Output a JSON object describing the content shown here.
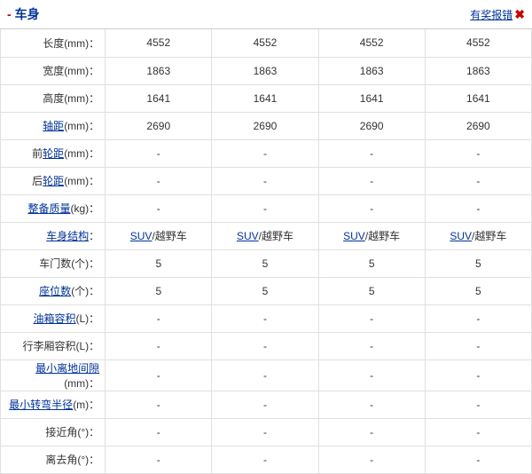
{
  "header": {
    "title": "车身",
    "report_label": "有奖报错"
  },
  "rows": [
    {
      "label": "长度(mm)：",
      "link": false,
      "values": [
        "4552",
        "4552",
        "4552",
        "4552"
      ],
      "vlink": false
    },
    {
      "label": "宽度(mm)：",
      "link": false,
      "values": [
        "1863",
        "1863",
        "1863",
        "1863"
      ],
      "vlink": false
    },
    {
      "label": "高度(mm)：",
      "link": false,
      "values": [
        "1641",
        "1641",
        "1641",
        "1641"
      ],
      "vlink": false
    },
    {
      "label_pre": "轴距",
      "label_post": "(mm)：",
      "link": true,
      "values": [
        "2690",
        "2690",
        "2690",
        "2690"
      ],
      "vlink": false
    },
    {
      "label_pre": "前",
      "label_mid": "轮距",
      "label_post": "(mm)：",
      "link": "mid",
      "values": [
        "-",
        "-",
        "-",
        "-"
      ],
      "vlink": false
    },
    {
      "label_pre": "后",
      "label_mid": "轮距",
      "label_post": "(mm)：",
      "link": "mid",
      "values": [
        "-",
        "-",
        "-",
        "-"
      ],
      "vlink": false
    },
    {
      "label_pre": "整备质量",
      "label_post": "(kg)：",
      "link": true,
      "values": [
        "-",
        "-",
        "-",
        "-"
      ],
      "vlink": false
    },
    {
      "label_pre": "车身结构",
      "label_post": "：",
      "link": true,
      "values_pre": "SUV",
      "values_post": "/越野车",
      "vlink": true
    },
    {
      "label": "车门数(个)：",
      "link": false,
      "values": [
        "5",
        "5",
        "5",
        "5"
      ],
      "vlink": false
    },
    {
      "label_pre": "座位数",
      "label_post": "(个)：",
      "link": true,
      "values": [
        "5",
        "5",
        "5",
        "5"
      ],
      "vlink": false
    },
    {
      "label_pre": "油箱容积",
      "label_post": "(L)：",
      "link": true,
      "values": [
        "-",
        "-",
        "-",
        "-"
      ],
      "vlink": false
    },
    {
      "label": "行李厢容积(L)：",
      "link": false,
      "values": [
        "-",
        "-",
        "-",
        "-"
      ],
      "vlink": false
    },
    {
      "label_pre": "最小离地间隙",
      "label_post": "(mm)：",
      "link": true,
      "values": [
        "-",
        "-",
        "-",
        "-"
      ],
      "vlink": false
    },
    {
      "label_pre": "最小转弯半径",
      "label_post": "(m)：",
      "link": true,
      "values": [
        "-",
        "-",
        "-",
        "-"
      ],
      "vlink": false
    },
    {
      "label": "接近角(°)：",
      "link": false,
      "values": [
        "-",
        "-",
        "-",
        "-"
      ],
      "vlink": false
    },
    {
      "label": "离去角(°)：",
      "link": false,
      "values": [
        "-",
        "-",
        "-",
        "-"
      ],
      "vlink": false
    }
  ]
}
